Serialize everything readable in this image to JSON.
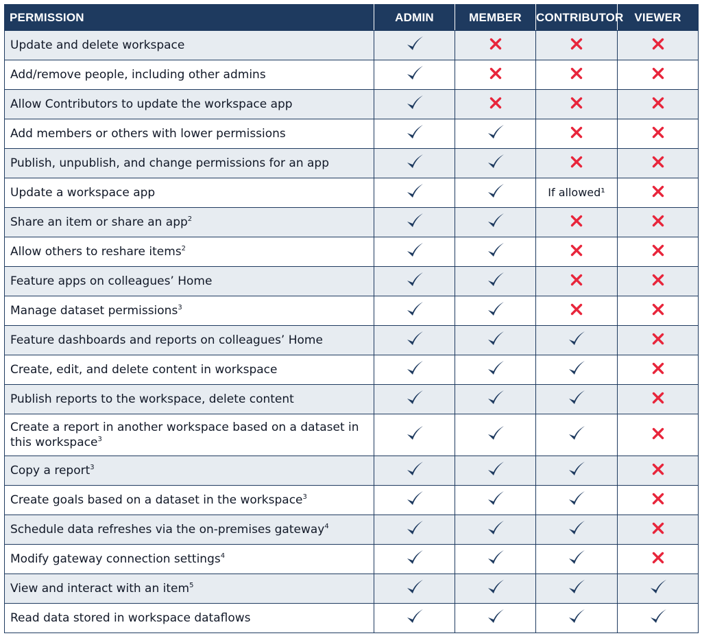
{
  "colors": {
    "header_bg": "#1e3a5f",
    "stripe": "#e7ecf1",
    "check": "#1e3a5f",
    "cross": "#e8253b"
  },
  "columns": [
    "PERMISSION",
    "ADMIN",
    "MEMBER",
    "CONTRIBUTOR",
    "VIEWER"
  ],
  "icons": {
    "yes": "check-icon",
    "no": "cross-icon"
  },
  "rows": [
    {
      "label": "Update and delete workspace",
      "sup": "",
      "cells": [
        "yes",
        "no",
        "no",
        "no"
      ]
    },
    {
      "label": "Add/remove people, including other admins",
      "sup": "",
      "cells": [
        "yes",
        "no",
        "no",
        "no"
      ]
    },
    {
      "label": "Allow Contributors to update the workspace app",
      "sup": "",
      "cells": [
        "yes",
        "no",
        "no",
        "no"
      ]
    },
    {
      "label": "Add members or others with lower permissions",
      "sup": "",
      "cells": [
        "yes",
        "yes",
        "no",
        "no"
      ]
    },
    {
      "label": "Publish, unpublish, and change permissions for an app",
      "sup": "",
      "cells": [
        "yes",
        "yes",
        "no",
        "no"
      ]
    },
    {
      "label": "Update a workspace app",
      "sup": "",
      "cells": [
        "yes",
        "yes",
        "If allowed¹",
        "no"
      ]
    },
    {
      "label": "Share an item or share an app",
      "sup": "2",
      "cells": [
        "yes",
        "yes",
        "no",
        "no"
      ]
    },
    {
      "label": "Allow others to reshare items",
      "sup": "2",
      "cells": [
        "yes",
        "yes",
        "no",
        "no"
      ]
    },
    {
      "label": "Feature apps on colleagues’ Home",
      "sup": "",
      "cells": [
        "yes",
        "yes",
        "no",
        "no"
      ]
    },
    {
      "label": "Manage dataset permissions",
      "sup": "3",
      "cells": [
        "yes",
        "yes",
        "no",
        "no"
      ]
    },
    {
      "label": "Feature dashboards and reports on colleagues’ Home",
      "sup": "",
      "cells": [
        "yes",
        "yes",
        "yes",
        "no"
      ]
    },
    {
      "label": "Create, edit, and delete content in workspace",
      "sup": "",
      "cells": [
        "yes",
        "yes",
        "yes",
        "no"
      ]
    },
    {
      "label": "Publish reports to the workspace, delete content",
      "sup": "",
      "cells": [
        "yes",
        "yes",
        "yes",
        "no"
      ]
    },
    {
      "label": "Create a report in another workspace based on a dataset in this workspace",
      "sup": "3",
      "cells": [
        "yes",
        "yes",
        "yes",
        "no"
      ],
      "tall": true
    },
    {
      "label": "Copy a report",
      "sup": "3",
      "cells": [
        "yes",
        "yes",
        "yes",
        "no"
      ]
    },
    {
      "label": "Create goals based on a dataset in the workspace",
      "sup": "3",
      "cells": [
        "yes",
        "yes",
        "yes",
        "no"
      ]
    },
    {
      "label": "Schedule data refreshes via the on-premises gateway",
      "sup": "4",
      "cells": [
        "yes",
        "yes",
        "yes",
        "no"
      ]
    },
    {
      "label": "Modify gateway connection settings",
      "sup": "4",
      "cells": [
        "yes",
        "yes",
        "yes",
        "no"
      ]
    },
    {
      "label": "View and interact with an item",
      "sup": "5",
      "cells": [
        "yes",
        "yes",
        "yes",
        "yes"
      ]
    },
    {
      "label": "Read data stored in workspace dataflows",
      "sup": "",
      "cells": [
        "yes",
        "yes",
        "yes",
        "yes"
      ]
    }
  ]
}
